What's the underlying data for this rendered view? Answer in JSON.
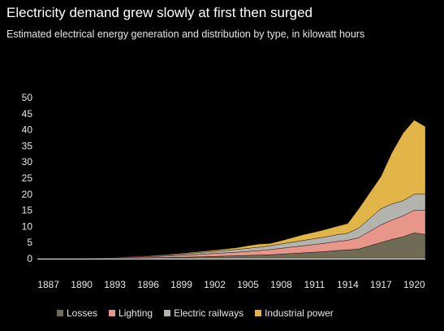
{
  "chart_data": {
    "type": "area",
    "stacked": true,
    "title": "Electricity demand grew slowly at first then surged",
    "subtitle": "Estimated electrical energy generation and distribution by type, in kilowatt hours",
    "x": [
      1887,
      1888,
      1889,
      1890,
      1891,
      1892,
      1893,
      1894,
      1895,
      1896,
      1897,
      1898,
      1899,
      1900,
      1901,
      1902,
      1903,
      1904,
      1905,
      1906,
      1907,
      1908,
      1909,
      1910,
      1911,
      1912,
      1913,
      1914,
      1915,
      1916,
      1917,
      1918,
      1919,
      1920,
      1921
    ],
    "xlim": [
      1886,
      1921
    ],
    "xticks": [
      1887,
      1890,
      1893,
      1896,
      1899,
      1902,
      1905,
      1908,
      1911,
      1914,
      1917,
      1920
    ],
    "xtick_labels": [
      "1887",
      "1890",
      "1893",
      "1896",
      "1899",
      "1902",
      "1905",
      "1908",
      "1911",
      "1914",
      "1917",
      "1920"
    ],
    "ylim": [
      0,
      50
    ],
    "yticks": [
      0,
      5,
      10,
      15,
      20,
      25,
      30,
      35,
      40,
      45,
      50
    ],
    "ytick_labels": [
      "0",
      "5",
      "10",
      "15",
      "20",
      "25",
      "30",
      "35",
      "40",
      "45",
      "50"
    ],
    "grid": false,
    "legend_position": "bottom",
    "series": [
      {
        "name": "Losses",
        "color": "#706b55",
        "values": [
          0.02,
          0.03,
          0.05,
          0.07,
          0.1,
          0.12,
          0.15,
          0.18,
          0.22,
          0.27,
          0.32,
          0.38,
          0.45,
          0.52,
          0.6,
          0.7,
          0.8,
          0.9,
          1.0,
          1.1,
          1.2,
          1.4,
          1.6,
          1.8,
          2.0,
          2.2,
          2.5,
          2.7,
          3.0,
          4.0,
          5.0,
          6.0,
          6.8,
          8.0,
          7.5
        ]
      },
      {
        "name": "Lighting",
        "color": "#e8958a",
        "values": [
          0.03,
          0.05,
          0.07,
          0.09,
          0.12,
          0.16,
          0.2,
          0.25,
          0.3,
          0.35,
          0.42,
          0.5,
          0.6,
          0.7,
          0.8,
          0.9,
          1.0,
          1.1,
          1.25,
          1.4,
          1.6,
          1.8,
          2.0,
          2.2,
          2.4,
          2.6,
          2.8,
          3.0,
          3.5,
          4.5,
          5.5,
          6.0,
          6.5,
          7.0,
          7.5
        ]
      },
      {
        "name": "Electric railways",
        "color": "#b4b4ae",
        "values": [
          0.0,
          0.01,
          0.02,
          0.03,
          0.05,
          0.07,
          0.1,
          0.13,
          0.17,
          0.21,
          0.26,
          0.32,
          0.4,
          0.48,
          0.56,
          0.65,
          0.75,
          0.85,
          0.95,
          1.05,
          1.2,
          1.35,
          1.5,
          1.65,
          1.8,
          1.95,
          2.1,
          2.2,
          3.0,
          4.0,
          5.0,
          5.0,
          4.7,
          5.0,
          5.0
        ]
      },
      {
        "name": "Industrial power",
        "color": "#e2b549",
        "values": [
          0.0,
          0.0,
          0.0,
          0.01,
          0.02,
          0.03,
          0.05,
          0.07,
          0.09,
          0.12,
          0.15,
          0.18,
          0.22,
          0.28,
          0.35,
          0.4,
          0.45,
          0.55,
          0.8,
          0.95,
          0.7,
          1.0,
          1.4,
          1.8,
          2.0,
          2.3,
          2.6,
          3.0,
          6.0,
          8.0,
          10.0,
          16.0,
          21.0,
          23.0,
          21.0
        ]
      }
    ]
  }
}
